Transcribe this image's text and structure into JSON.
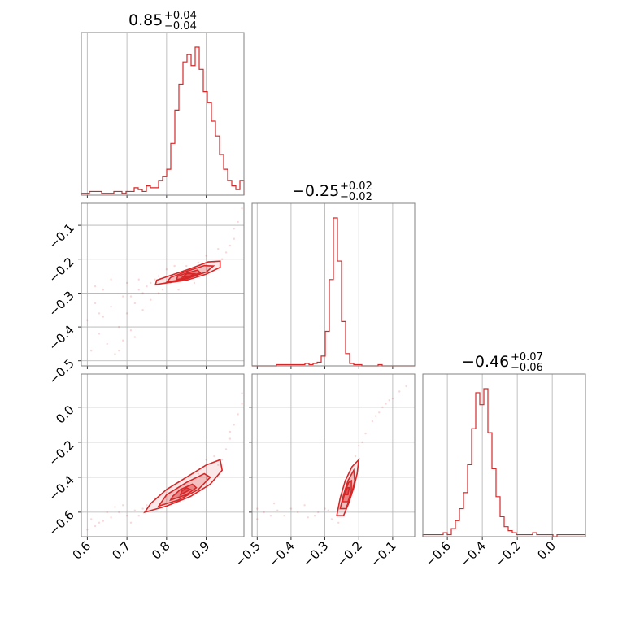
{
  "chart_data": {
    "type": "corner",
    "color": "#d62728",
    "parameters": [
      {
        "title_value": "0.85",
        "title_plus": "+0.04",
        "title_minus": "−0.04",
        "range": [
          0.585,
          0.995
        ],
        "ticks": [
          0.6,
          0.7,
          0.8,
          0.9
        ],
        "tick_labels": [
          "0.6",
          "0.7",
          "0.8",
          "0.9"
        ]
      },
      {
        "title_value": "−0.25",
        "title_plus": "+0.02",
        "title_minus": "−0.02",
        "range": [
          -0.515,
          -0.035
        ],
        "ticks": [
          -0.5,
          -0.4,
          -0.3,
          -0.2,
          -0.1
        ],
        "tick_labels": [
          "−0.5",
          "−0.4",
          "−0.3",
          "−0.2",
          "−0.1"
        ]
      },
      {
        "title_value": "−0.46",
        "title_plus": "+0.07",
        "title_minus": "−0.06",
        "range": [
          -0.74,
          0.19
        ],
        "ticks": [
          -0.6,
          -0.4,
          -0.2,
          0.0
        ],
        "tick_labels": [
          "−0.6",
          "−0.4",
          "−0.2",
          "0.0"
        ]
      }
    ],
    "histograms": [
      {
        "edges_start": 0.585,
        "edges_end": 0.995,
        "counts": [
          1,
          1,
          2,
          2,
          2,
          1,
          1,
          1,
          2,
          2,
          1,
          2,
          2,
          4,
          3,
          2,
          5,
          4,
          4,
          8,
          10,
          14,
          28,
          46,
          60,
          72,
          76,
          70,
          80,
          68,
          56,
          50,
          40,
          32,
          22,
          14,
          8,
          5,
          3,
          8
        ]
      },
      {
        "edges_start": -0.515,
        "edges_end": -0.035,
        "counts": [
          0,
          0,
          0,
          0,
          0,
          0,
          1,
          1,
          1,
          1,
          1,
          1,
          1,
          2,
          1,
          2,
          3,
          8,
          28,
          70,
          120,
          85,
          36,
          10,
          2,
          1,
          1,
          0,
          0,
          0,
          0,
          1,
          0,
          0,
          0,
          0,
          0,
          0,
          0,
          0
        ]
      },
      {
        "edges_start": -0.74,
        "edges_end": 0.19,
        "counts": [
          1,
          1,
          1,
          1,
          1,
          2,
          1,
          4,
          8,
          14,
          22,
          36,
          54,
          72,
          66,
          74,
          52,
          34,
          20,
          10,
          5,
          3,
          2,
          1,
          1,
          1,
          1,
          2,
          1,
          1,
          1,
          1,
          0,
          1,
          1,
          1,
          1,
          1,
          1,
          1
        ]
      }
    ],
    "pairs": [
      {
        "x_param": 0,
        "y_param": 1,
        "contours": [
          [
            [
              0.772,
              -0.275
            ],
            [
              0.8,
              -0.27
            ],
            [
              0.85,
              -0.262
            ],
            [
              0.9,
              -0.244
            ],
            [
              0.935,
              -0.224
            ],
            [
              0.935,
              -0.206
            ],
            [
              0.905,
              -0.208
            ],
            [
              0.86,
              -0.228
            ],
            [
              0.815,
              -0.246
            ],
            [
              0.775,
              -0.262
            ]
          ],
          [
            [
              0.8,
              -0.268
            ],
            [
              0.85,
              -0.258
            ],
            [
              0.9,
              -0.238
            ],
            [
              0.918,
              -0.22
            ],
            [
              0.895,
              -0.219
            ],
            [
              0.85,
              -0.236
            ],
            [
              0.81,
              -0.254
            ]
          ],
          [
            [
              0.825,
              -0.26
            ],
            [
              0.855,
              -0.254
            ],
            [
              0.885,
              -0.24
            ],
            [
              0.878,
              -0.232
            ],
            [
              0.85,
              -0.241
            ],
            [
              0.828,
              -0.25
            ]
          ],
          [
            [
              0.84,
              -0.253
            ],
            [
              0.86,
              -0.25
            ],
            [
              0.87,
              -0.243
            ],
            [
              0.852,
              -0.242
            ]
          ]
        ],
        "points": [
          [
            0.62,
            -0.33
          ],
          [
            0.64,
            -0.37
          ],
          [
            0.66,
            -0.34
          ],
          [
            0.63,
            -0.42
          ],
          [
            0.68,
            -0.4
          ],
          [
            0.7,
            -0.36
          ],
          [
            0.71,
            -0.31
          ],
          [
            0.65,
            -0.45
          ],
          [
            0.6,
            -0.38
          ],
          [
            0.73,
            -0.29
          ],
          [
            0.75,
            -0.28
          ],
          [
            0.76,
            -0.27
          ],
          [
            0.74,
            -0.3
          ],
          [
            0.72,
            -0.33
          ],
          [
            0.69,
            -0.44
          ],
          [
            0.67,
            -0.48
          ],
          [
            0.61,
            -0.47
          ],
          [
            0.78,
            -0.25
          ],
          [
            0.8,
            -0.23
          ],
          [
            0.82,
            -0.22
          ],
          [
            0.95,
            -0.18
          ],
          [
            0.97,
            -0.14
          ],
          [
            0.98,
            -0.09
          ],
          [
            0.99,
            -0.05
          ],
          [
            0.96,
            -0.16
          ],
          [
            0.94,
            -0.2
          ],
          [
            0.92,
            -0.21
          ],
          [
            0.77,
            -0.26
          ],
          [
            0.79,
            -0.29
          ],
          [
            0.83,
            -0.29
          ],
          [
            0.87,
            -0.27
          ],
          [
            0.7,
            -0.27
          ],
          [
            0.66,
            -0.26
          ],
          [
            0.64,
            -0.29
          ],
          [
            0.71,
            -0.41
          ],
          [
            0.74,
            -0.35
          ],
          [
            0.62,
            -0.28
          ],
          [
            0.69,
            -0.31
          ],
          [
            0.73,
            -0.26
          ],
          [
            0.78,
            -0.3
          ],
          [
            0.85,
            -0.22
          ],
          [
            0.88,
            -0.21
          ],
          [
            0.9,
            -0.19
          ],
          [
            0.93,
            -0.17
          ],
          [
            0.97,
            -0.11
          ],
          [
            0.68,
            -0.47
          ],
          [
            0.72,
            -0.43
          ],
          [
            0.63,
            -0.36
          ],
          [
            0.76,
            -0.32
          ],
          [
            0.81,
            -0.27
          ]
        ]
      },
      {
        "x_param": 0,
        "y_param": 2,
        "contours": [
          [
            [
              0.745,
              -0.6
            ],
            [
              0.8,
              -0.565
            ],
            [
              0.86,
              -0.51
            ],
            [
              0.91,
              -0.44
            ],
            [
              0.94,
              -0.36
            ],
            [
              0.935,
              -0.3
            ],
            [
              0.9,
              -0.33
            ],
            [
              0.85,
              -0.4
            ],
            [
              0.8,
              -0.47
            ],
            [
              0.76,
              -0.55
            ]
          ],
          [
            [
              0.78,
              -0.565
            ],
            [
              0.83,
              -0.53
            ],
            [
              0.88,
              -0.47
            ],
            [
              0.91,
              -0.4
            ],
            [
              0.895,
              -0.38
            ],
            [
              0.85,
              -0.43
            ],
            [
              0.8,
              -0.5
            ]
          ],
          [
            [
              0.81,
              -0.53
            ],
            [
              0.85,
              -0.5
            ],
            [
              0.875,
              -0.46
            ],
            [
              0.865,
              -0.44
            ],
            [
              0.835,
              -0.47
            ],
            [
              0.815,
              -0.51
            ]
          ],
          [
            [
              0.835,
              -0.5
            ],
            [
              0.86,
              -0.47
            ],
            [
              0.85,
              -0.46
            ],
            [
              0.838,
              -0.48
            ]
          ]
        ],
        "points": [
          [
            0.62,
            -0.68
          ],
          [
            0.64,
            -0.65
          ],
          [
            0.66,
            -0.63
          ],
          [
            0.68,
            -0.6
          ],
          [
            0.7,
            -0.62
          ],
          [
            0.72,
            -0.59
          ],
          [
            0.74,
            -0.58
          ],
          [
            0.6,
            -0.7
          ],
          [
            0.63,
            -0.66
          ],
          [
            0.67,
            -0.57
          ],
          [
            0.71,
            -0.66
          ],
          [
            0.95,
            -0.24
          ],
          [
            0.96,
            -0.18
          ],
          [
            0.97,
            -0.1
          ],
          [
            0.98,
            -0.04
          ],
          [
            0.99,
            0.02
          ],
          [
            0.99,
            0.08
          ],
          [
            0.94,
            -0.3
          ],
          [
            0.93,
            -0.33
          ],
          [
            0.9,
            -0.3
          ],
          [
            0.77,
            -0.52
          ],
          [
            0.79,
            -0.57
          ],
          [
            0.73,
            -0.62
          ],
          [
            0.65,
            -0.6
          ],
          [
            0.69,
            -0.56
          ],
          [
            0.61,
            -0.64
          ],
          [
            0.75,
            -0.56
          ],
          [
            0.88,
            -0.38
          ],
          [
            0.92,
            -0.28
          ],
          [
            0.96,
            -0.14
          ]
        ]
      },
      {
        "x_param": 1,
        "y_param": 2,
        "contours": [
          [
            [
              -0.265,
              -0.62
            ],
            [
              -0.255,
              -0.52
            ],
            [
              -0.24,
              -0.42
            ],
            [
              -0.22,
              -0.34
            ],
            [
              -0.2,
              -0.3
            ],
            [
              -0.205,
              -0.38
            ],
            [
              -0.215,
              -0.46
            ],
            [
              -0.23,
              -0.55
            ],
            [
              -0.245,
              -0.62
            ]
          ],
          [
            [
              -0.255,
              -0.58
            ],
            [
              -0.245,
              -0.5
            ],
            [
              -0.232,
              -0.42
            ],
            [
              -0.215,
              -0.36
            ],
            [
              -0.212,
              -0.42
            ],
            [
              -0.222,
              -0.5
            ],
            [
              -0.238,
              -0.58
            ]
          ],
          [
            [
              -0.248,
              -0.54
            ],
            [
              -0.24,
              -0.48
            ],
            [
              -0.23,
              -0.43
            ],
            [
              -0.222,
              -0.42
            ],
            [
              -0.222,
              -0.48
            ],
            [
              -0.232,
              -0.54
            ]
          ],
          [
            [
              -0.242,
              -0.5
            ],
            [
              -0.234,
              -0.46
            ],
            [
              -0.228,
              -0.46
            ],
            [
              -0.232,
              -0.5
            ]
          ]
        ],
        "points": [
          [
            -0.5,
            -0.58
          ],
          [
            -0.48,
            -0.6
          ],
          [
            -0.45,
            -0.55
          ],
          [
            -0.42,
            -0.62
          ],
          [
            -0.4,
            -0.58
          ],
          [
            -0.38,
            -0.6
          ],
          [
            -0.35,
            -0.63
          ],
          [
            -0.32,
            -0.6
          ],
          [
            -0.3,
            -0.58
          ],
          [
            -0.28,
            -0.64
          ],
          [
            -0.46,
            -0.62
          ],
          [
            -0.36,
            -0.56
          ],
          [
            -0.33,
            -0.62
          ],
          [
            -0.29,
            -0.59
          ],
          [
            -0.2,
            -0.22
          ],
          [
            -0.18,
            -0.15
          ],
          [
            -0.16,
            -0.08
          ],
          [
            -0.14,
            -0.03
          ],
          [
            -0.12,
            0.02
          ],
          [
            -0.1,
            0.05
          ],
          [
            -0.08,
            0.09
          ],
          [
            -0.06,
            0.12
          ],
          [
            -0.15,
            -0.05
          ],
          [
            -0.19,
            -0.2
          ],
          [
            -0.13,
            0.0
          ],
          [
            -0.11,
            0.04
          ],
          [
            -0.21,
            -0.28
          ],
          [
            -0.26,
            -0.66
          ],
          [
            -0.44,
            -0.59
          ],
          [
            -0.5,
            -0.64
          ]
        ]
      }
    ]
  }
}
